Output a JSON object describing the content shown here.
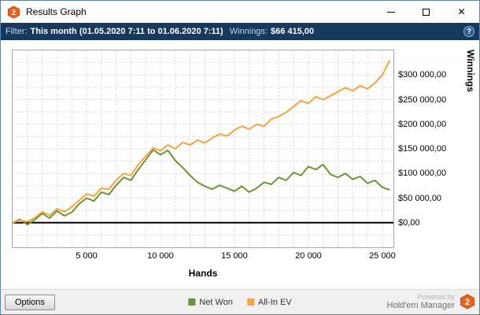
{
  "window": {
    "title": "Results Graph",
    "logo_text": "2",
    "close_icon": "✕"
  },
  "filter_bar": {
    "filter_label": "Filter:",
    "filter_value": "This month (01.05.2020 7:11 to 01.06.2020 7:11)",
    "winnings_label": "Winnings:",
    "winnings_value": "$66 415,00",
    "help_icon": "?"
  },
  "chart_data": {
    "type": "line",
    "title": "",
    "xlabel": "Hands",
    "ylabel": "Winnings",
    "xlim": [
      0,
      25750
    ],
    "ylim": [
      -50000,
      350000
    ],
    "x_grid_step": 1000,
    "y_grid_step": 25000,
    "grid": true,
    "zero_value": 0,
    "legend_position": "bottom",
    "x_ticks": [
      {
        "value": 5000,
        "label": "5 000"
      },
      {
        "value": 10000,
        "label": "10 000"
      },
      {
        "value": 15000,
        "label": "15 000"
      },
      {
        "value": 20000,
        "label": "20 000"
      },
      {
        "value": 25000,
        "label": "25 000"
      }
    ],
    "y_ticks": [
      {
        "value": 0,
        "label": "$0,00"
      },
      {
        "value": 50000,
        "label": "$50 000,00"
      },
      {
        "value": 100000,
        "label": "$100 000,00"
      },
      {
        "value": 150000,
        "label": "$150 000,00"
      },
      {
        "value": 200000,
        "label": "$200 000,00"
      },
      {
        "value": 250000,
        "label": "$250 000,00"
      },
      {
        "value": 300000,
        "label": "$300 000,00"
      }
    ],
    "series": [
      {
        "name": "Net Won",
        "color": "#6d9335",
        "points": [
          [
            0,
            0
          ],
          [
            500,
            7000
          ],
          [
            1000,
            -4000
          ],
          [
            1500,
            6000
          ],
          [
            2000,
            19000
          ],
          [
            2500,
            9000
          ],
          [
            3000,
            24000
          ],
          [
            3500,
            14000
          ],
          [
            4000,
            21000
          ],
          [
            4500,
            38000
          ],
          [
            5000,
            50000
          ],
          [
            5500,
            44000
          ],
          [
            6000,
            62000
          ],
          [
            6500,
            57000
          ],
          [
            7000,
            76000
          ],
          [
            7500,
            92000
          ],
          [
            8000,
            86000
          ],
          [
            8500,
            108000
          ],
          [
            9000,
            128000
          ],
          [
            9500,
            148000
          ],
          [
            10000,
            138000
          ],
          [
            10500,
            147000
          ],
          [
            11000,
            126000
          ],
          [
            11500,
            112000
          ],
          [
            12000,
            96000
          ],
          [
            12500,
            82000
          ],
          [
            13000,
            74000
          ],
          [
            13500,
            68000
          ],
          [
            14000,
            76000
          ],
          [
            14500,
            70000
          ],
          [
            15000,
            64000
          ],
          [
            15500,
            74000
          ],
          [
            16000,
            62000
          ],
          [
            16500,
            70000
          ],
          [
            17000,
            82000
          ],
          [
            17500,
            78000
          ],
          [
            18000,
            92000
          ],
          [
            18500,
            86000
          ],
          [
            19000,
            102000
          ],
          [
            19500,
            96000
          ],
          [
            20000,
            114000
          ],
          [
            20500,
            108000
          ],
          [
            21000,
            118000
          ],
          [
            21500,
            98000
          ],
          [
            22000,
            92000
          ],
          [
            22500,
            100000
          ],
          [
            23000,
            88000
          ],
          [
            23500,
            94000
          ],
          [
            24000,
            80000
          ],
          [
            24500,
            86000
          ],
          [
            25000,
            72000
          ],
          [
            25500,
            66415
          ]
        ]
      },
      {
        "name": "All-In EV",
        "color": "#f7a23c",
        "points": [
          [
            0,
            0
          ],
          [
            500,
            5000
          ],
          [
            1000,
            2000
          ],
          [
            1500,
            10000
          ],
          [
            2000,
            22000
          ],
          [
            2500,
            15000
          ],
          [
            3000,
            28000
          ],
          [
            3500,
            22000
          ],
          [
            4000,
            32000
          ],
          [
            4500,
            45000
          ],
          [
            5000,
            58000
          ],
          [
            5500,
            54000
          ],
          [
            6000,
            70000
          ],
          [
            6500,
            68000
          ],
          [
            7000,
            86000
          ],
          [
            7500,
            100000
          ],
          [
            8000,
            96000
          ],
          [
            8500,
            118000
          ],
          [
            9000,
            135000
          ],
          [
            9500,
            152000
          ],
          [
            10000,
            146000
          ],
          [
            10500,
            158000
          ],
          [
            11000,
            150000
          ],
          [
            11500,
            163000
          ],
          [
            12000,
            158000
          ],
          [
            12500,
            168000
          ],
          [
            13000,
            162000
          ],
          [
            13500,
            172000
          ],
          [
            14000,
            180000
          ],
          [
            14500,
            176000
          ],
          [
            15000,
            188000
          ],
          [
            15500,
            196000
          ],
          [
            16000,
            190000
          ],
          [
            16500,
            200000
          ],
          [
            17000,
            196000
          ],
          [
            17500,
            210000
          ],
          [
            18000,
            216000
          ],
          [
            18500,
            224000
          ],
          [
            19000,
            236000
          ],
          [
            19500,
            248000
          ],
          [
            20000,
            242000
          ],
          [
            20500,
            256000
          ],
          [
            21000,
            250000
          ],
          [
            21500,
            258000
          ],
          [
            22000,
            266000
          ],
          [
            22500,
            274000
          ],
          [
            23000,
            268000
          ],
          [
            23500,
            278000
          ],
          [
            24000,
            272000
          ],
          [
            24500,
            284000
          ],
          [
            25000,
            300000
          ],
          [
            25500,
            330000
          ]
        ]
      }
    ]
  },
  "bottom_bar": {
    "options_button": "Options",
    "powered_by": "Powered by",
    "brand": "Hold'em Manager",
    "brand_logo_text": "2"
  },
  "colors": {
    "filter_bar_bg": "#17395e",
    "net_won": "#6d9335",
    "all_in_ev": "#f7a23c",
    "accent_orange": "#e8641e"
  }
}
